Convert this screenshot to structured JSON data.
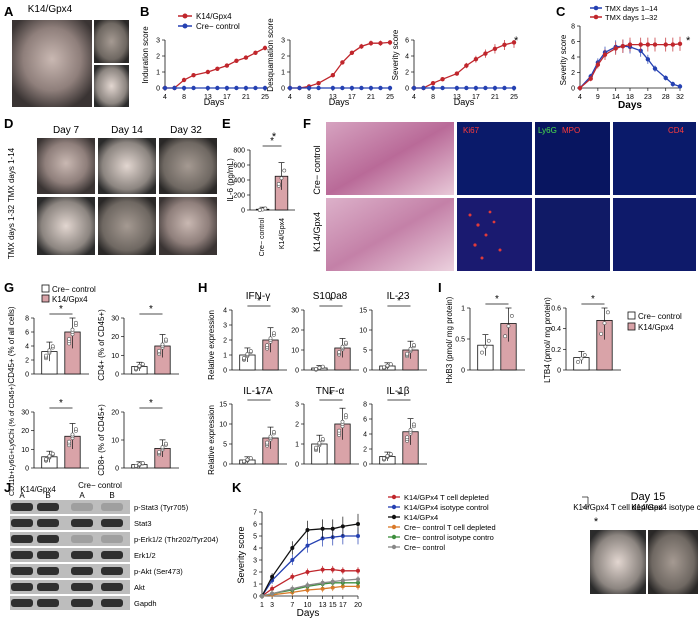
{
  "colors": {
    "red": "#c0262c",
    "blue": "#2541b2",
    "black": "#111111",
    "gray": "#888888",
    "orange": "#d97a2a",
    "green": "#3f8f3f",
    "bar": "#d9a3a8"
  },
  "panels": {
    "A": {
      "letter": "A",
      "title": "K14/Gpx4"
    },
    "B": {
      "letter": "B",
      "legend": [
        "K14/Gpx4",
        "Cre− control"
      ],
      "xlabel": "Days",
      "charts": [
        {
          "ylabel": "Induration score"
        },
        {
          "ylabel": "Desquamation score"
        },
        {
          "ylabel": "Severity score",
          "star": "*"
        }
      ]
    },
    "C": {
      "letter": "C",
      "legend": [
        "TMX days 1–14",
        "TMX days 1–32"
      ],
      "ylabel": "Severity score",
      "xlabel": "Days",
      "star": "*"
    },
    "D": {
      "letter": "D",
      "days": [
        "Day 7",
        "Day 14",
        "Day 32"
      ],
      "rows": [
        "TMX days 1-14",
        "TMX days 1-32"
      ]
    },
    "E": {
      "letter": "E",
      "ylabel": "IL-6 (pg/mL)",
      "categories": [
        "Cre− control",
        "K14/Gpx4"
      ],
      "star": "*"
    },
    "F": {
      "letter": "F",
      "rows": [
        "Cre− control",
        "K14/Gpx4"
      ],
      "stains": [
        "Ki67",
        "Ly6G",
        "MPO",
        "CD4"
      ]
    },
    "G": {
      "letter": "G",
      "legend": [
        "Cre− control",
        "K14/Gpx4"
      ],
      "charts": [
        {
          "ylabel": "CD45+ (% of all cells)"
        },
        {
          "ylabel": "CD4+ (% of CD45+)"
        },
        {
          "ylabel": "CD11b+Ly6G+Ly6Chi (% of CD45+)"
        },
        {
          "ylabel": "CD8+ (% of CD45+)"
        }
      ]
    },
    "H": {
      "letter": "H",
      "ylabel": "Relative expression",
      "titles": [
        "IFN-γ",
        "S100a8",
        "IL-23",
        "IL-17A",
        "TNF-α",
        "IL-1β"
      ]
    },
    "I": {
      "letter": "I",
      "legend": [
        "Cre− control",
        "K14/Gpx4"
      ],
      "charts": [
        {
          "ylabel": "HxB3 (pmol/ mg protein)"
        },
        {
          "ylabel": "LTB4 (pmol/ mg protein)"
        }
      ]
    },
    "J": {
      "letter": "J",
      "groups": [
        "K14/Gpx4",
        "Cre− control"
      ],
      "lanes": [
        "A",
        "B",
        "A",
        "B"
      ],
      "bands": [
        "p-Stat3 (Tyr705)",
        "Stat3",
        "p-Erk1/2 (Thr202/Tyr204)",
        "Erk1/2",
        "p-Akt (Ser473)",
        "Akt",
        "Gapdh"
      ]
    },
    "K": {
      "letter": "K",
      "ylabel": "Severity score",
      "xlabel": "Days",
      "star": "*",
      "legend": [
        "K14/GPx4 T cell depleted",
        "K14/GPx4 isotype control",
        "K14/GPx4",
        "Cre− control T cell depleted",
        "Cre− control isotype contro",
        "Cre− control"
      ],
      "photo_title": "Day 15",
      "photos": [
        "K14/Gpx4 T cell depleted",
        "K14/Gpx4 isotype control"
      ]
    }
  },
  "chart_data": [
    {
      "type": "line",
      "panel": "B1",
      "ylabel": "Induration score",
      "xlabel": "Days",
      "ylim": [
        0,
        3
      ],
      "yticks": [
        0,
        1,
        2,
        3
      ],
      "x": [
        4,
        6,
        8,
        10,
        13,
        15,
        17,
        19,
        21,
        23,
        25
      ],
      "xticks": [
        4,
        8,
        13,
        17,
        21,
        25
      ],
      "series": [
        {
          "name": "K14/Gpx4",
          "values": [
            0,
            0,
            0.5,
            0.8,
            1.0,
            1.2,
            1.4,
            1.7,
            1.9,
            2.2,
            2.5
          ]
        },
        {
          "name": "Cre− control",
          "values": [
            0,
            0,
            0,
            0,
            0,
            0,
            0,
            0,
            0,
            0,
            0
          ]
        }
      ]
    },
    {
      "type": "line",
      "panel": "B2",
      "ylabel": "Desquamation score",
      "xlabel": "Days",
      "ylim": [
        0,
        3
      ],
      "yticks": [
        0,
        1,
        2,
        3
      ],
      "x": [
        4,
        6,
        8,
        10,
        13,
        15,
        17,
        19,
        21,
        23,
        25
      ],
      "xticks": [
        4,
        8,
        13,
        17,
        21,
        25
      ],
      "series": [
        {
          "name": "K14/Gpx4",
          "values": [
            0,
            0,
            0.1,
            0.3,
            0.8,
            1.6,
            2.2,
            2.6,
            2.8,
            2.8,
            2.85
          ]
        },
        {
          "name": "Cre− control",
          "values": [
            0,
            0,
            0,
            0,
            0,
            0,
            0,
            0,
            0,
            0,
            0
          ]
        }
      ]
    },
    {
      "type": "line",
      "panel": "B3",
      "ylabel": "Severity score",
      "xlabel": "Days",
      "ylim": [
        0,
        6
      ],
      "yticks": [
        0,
        2,
        4,
        6
      ],
      "x": [
        4,
        6,
        8,
        10,
        13,
        15,
        17,
        19,
        21,
        23,
        25
      ],
      "xticks": [
        4,
        8,
        13,
        17,
        21,
        25
      ],
      "series": [
        {
          "name": "K14/Gpx4",
          "values": [
            0,
            0,
            0.6,
            1.1,
            1.8,
            2.8,
            3.6,
            4.3,
            4.9,
            5.4,
            5.7
          ]
        },
        {
          "name": "Cre− control",
          "values": [
            0,
            0,
            0,
            0,
            0,
            0,
            0,
            0,
            0,
            0,
            0
          ]
        }
      ]
    },
    {
      "type": "line",
      "panel": "C",
      "ylabel": "Severity score",
      "xlabel": "Days",
      "ylim": [
        0,
        8
      ],
      "yticks": [
        0,
        2,
        4,
        6,
        8
      ],
      "x": [
        4,
        7,
        9,
        11,
        14,
        16,
        18,
        21,
        23,
        25,
        28,
        30,
        32
      ],
      "xticks": [
        4,
        9,
        14,
        18,
        23,
        28,
        32
      ],
      "series": [
        {
          "name": "TMX days 1–14",
          "values": [
            0,
            1.5,
            3.3,
            4.6,
            5.3,
            5.4,
            5.3,
            4.8,
            3.7,
            2.5,
            1.3,
            0.5,
            0.2
          ]
        },
        {
          "name": "TMX days 1–32",
          "values": [
            0,
            1.2,
            3.0,
            4.3,
            5.1,
            5.4,
            5.6,
            5.6,
            5.6,
            5.6,
            5.6,
            5.6,
            5.7
          ]
        }
      ]
    },
    {
      "type": "bar",
      "panel": "E",
      "ylabel": "IL-6 (pg/mL)",
      "categories": [
        "Cre− control",
        "K14/Gpx4"
      ],
      "values": [
        10,
        450
      ],
      "ylim": [
        0,
        800
      ],
      "yticks": [
        0,
        200,
        400,
        600,
        800
      ]
    },
    {
      "type": "bar",
      "panel": "G1",
      "ylabel": "CD45+ (% of all cells)",
      "categories": [
        "Cre− control",
        "K14/Gpx4"
      ],
      "values": [
        3.2,
        6.0
      ],
      "ylim": [
        0,
        8
      ],
      "yticks": [
        0,
        2,
        4,
        6,
        8
      ]
    },
    {
      "type": "bar",
      "panel": "G2",
      "ylabel": "CD4+ (% of CD45+)",
      "categories": [
        "Cre− control",
        "K14/Gpx4"
      ],
      "values": [
        4,
        15
      ],
      "ylim": [
        0,
        30
      ],
      "yticks": [
        0,
        10,
        20,
        30
      ]
    },
    {
      "type": "bar",
      "panel": "G3",
      "ylabel": "CD11b+Ly6G+Ly6Chi (% of CD45+)",
      "categories": [
        "Cre− control",
        "K14/Gpx4"
      ],
      "values": [
        6,
        17
      ],
      "ylim": [
        0,
        30
      ],
      "yticks": [
        0,
        10,
        20,
        30
      ]
    },
    {
      "type": "bar",
      "panel": "G4",
      "ylabel": "CD8+ (% of CD45+)",
      "categories": [
        "Cre− control",
        "K14/Gpx4"
      ],
      "values": [
        1.2,
        7
      ],
      "ylim": [
        0,
        20
      ],
      "yticks": [
        0,
        10,
        20
      ]
    },
    {
      "type": "bar",
      "panel": "H1",
      "title": "IFN-γ",
      "categories": [
        "Cre− control",
        "K14/Gpx4"
      ],
      "values": [
        1.0,
        2.0
      ],
      "ylim": [
        0,
        4
      ],
      "yticks": [
        0,
        1,
        2,
        3,
        4
      ]
    },
    {
      "type": "bar",
      "panel": "H2",
      "title": "S100a8",
      "categories": [
        "Cre− control",
        "K14/Gpx4"
      ],
      "values": [
        1.0,
        11
      ],
      "ylim": [
        0,
        30
      ],
      "yticks": [
        0,
        10,
        20,
        30
      ]
    },
    {
      "type": "bar",
      "panel": "H3",
      "title": "IL-23",
      "categories": [
        "Cre− control",
        "K14/Gpx4"
      ],
      "values": [
        1.0,
        5
      ],
      "ylim": [
        0,
        15
      ],
      "yticks": [
        0,
        5,
        10,
        15
      ]
    },
    {
      "type": "bar",
      "panel": "H4",
      "title": "IL-17A",
      "categories": [
        "Cre− control",
        "K14/Gpx4"
      ],
      "values": [
        1.0,
        6.5
      ],
      "ylim": [
        0,
        15
      ],
      "yticks": [
        0,
        5,
        10,
        15
      ]
    },
    {
      "type": "bar",
      "panel": "H5",
      "title": "TNF-α",
      "categories": [
        "Cre− control",
        "K14/Gpx4"
      ],
      "values": [
        1.0,
        2.0
      ],
      "ylim": [
        0,
        3
      ],
      "yticks": [
        0,
        1,
        2,
        3
      ]
    },
    {
      "type": "bar",
      "panel": "H6",
      "title": "IL-1β",
      "categories": [
        "Cre− control",
        "K14/Gpx4"
      ],
      "values": [
        1.0,
        4.3
      ],
      "ylim": [
        0,
        8
      ],
      "yticks": [
        0,
        2,
        4,
        6,
        8
      ]
    },
    {
      "type": "bar",
      "panel": "I1",
      "ylabel": "HxB3 (pmol/ mg protein)",
      "categories": [
        "Cre− control",
        "K14/Gpx4"
      ],
      "values": [
        0.4,
        0.75
      ],
      "ylim": [
        0,
        1.0
      ],
      "yticks": [
        0,
        0.5,
        1.0
      ]
    },
    {
      "type": "bar",
      "panel": "I2",
      "ylabel": "LTB4 (pmol/ mg protein)",
      "categories": [
        "Cre− control",
        "K14/Gpx4"
      ],
      "values": [
        0.12,
        0.48
      ],
      "ylim": [
        0,
        0.6
      ],
      "yticks": [
        0,
        0.2,
        0.4,
        0.6
      ]
    },
    {
      "type": "line",
      "panel": "K",
      "ylabel": "Severity score",
      "xlabel": "Days",
      "ylim": [
        0,
        7
      ],
      "yticks": [
        0,
        1,
        2,
        3,
        4,
        5,
        6,
        7
      ],
      "x": [
        1,
        3,
        7,
        10,
        13,
        15,
        17,
        20
      ],
      "xticks": [
        1,
        3,
        7,
        10,
        13,
        15,
        17,
        20
      ],
      "series": [
        {
          "name": "K14/GPx4 T cell depleted",
          "values": [
            0,
            0.6,
            1.6,
            2.0,
            2.2,
            2.2,
            2.1,
            2.1
          ]
        },
        {
          "name": "K14/GPx4 isotype control",
          "values": [
            0,
            1.3,
            3.0,
            4.2,
            4.8,
            4.9,
            5.0,
            5.0
          ]
        },
        {
          "name": "K14/GPx4",
          "values": [
            0,
            1.6,
            4.0,
            5.5,
            5.6,
            5.6,
            5.8,
            6.0
          ]
        },
        {
          "name": "Cre− control T cell depleted",
          "values": [
            0,
            0.1,
            0.3,
            0.5,
            0.6,
            0.7,
            0.8,
            0.8
          ]
        },
        {
          "name": "Cre− control isotype contro",
          "values": [
            0,
            0.2,
            0.5,
            0.8,
            1.0,
            1.1,
            1.1,
            1.1
          ]
        },
        {
          "name": "Cre− control",
          "values": [
            0,
            0.2,
            0.6,
            0.9,
            1.1,
            1.2,
            1.3,
            1.4
          ]
        }
      ]
    }
  ]
}
